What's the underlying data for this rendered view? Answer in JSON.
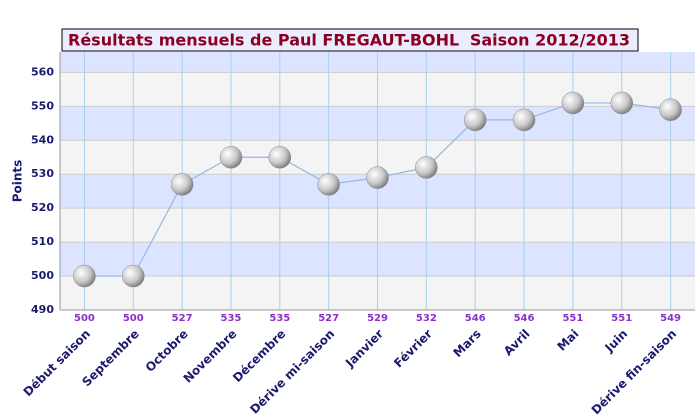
{
  "chart_data": {
    "type": "line",
    "title": "Résultats mensuels de  Paul FREGAUT-BOHL",
    "subtitle": "Saison 2012/2013",
    "y_label": "Points",
    "categories": [
      "Début saison",
      "Septembre",
      "Octobre",
      "Novembre",
      "Décembre",
      "Dérive mi-saison",
      "Janvier",
      "Février",
      "Mars",
      "Avril",
      "Mai",
      "Juin",
      "Dérive fin-saison"
    ],
    "values": [
      500,
      500,
      527,
      535,
      535,
      527,
      529,
      532,
      546,
      546,
      551,
      551,
      549
    ],
    "color": "#8fb8e8",
    "ylim": [
      490,
      566
    ],
    "yticks": [
      490,
      500,
      510,
      520,
      530,
      540,
      550,
      560
    ],
    "grid": true
  }
}
